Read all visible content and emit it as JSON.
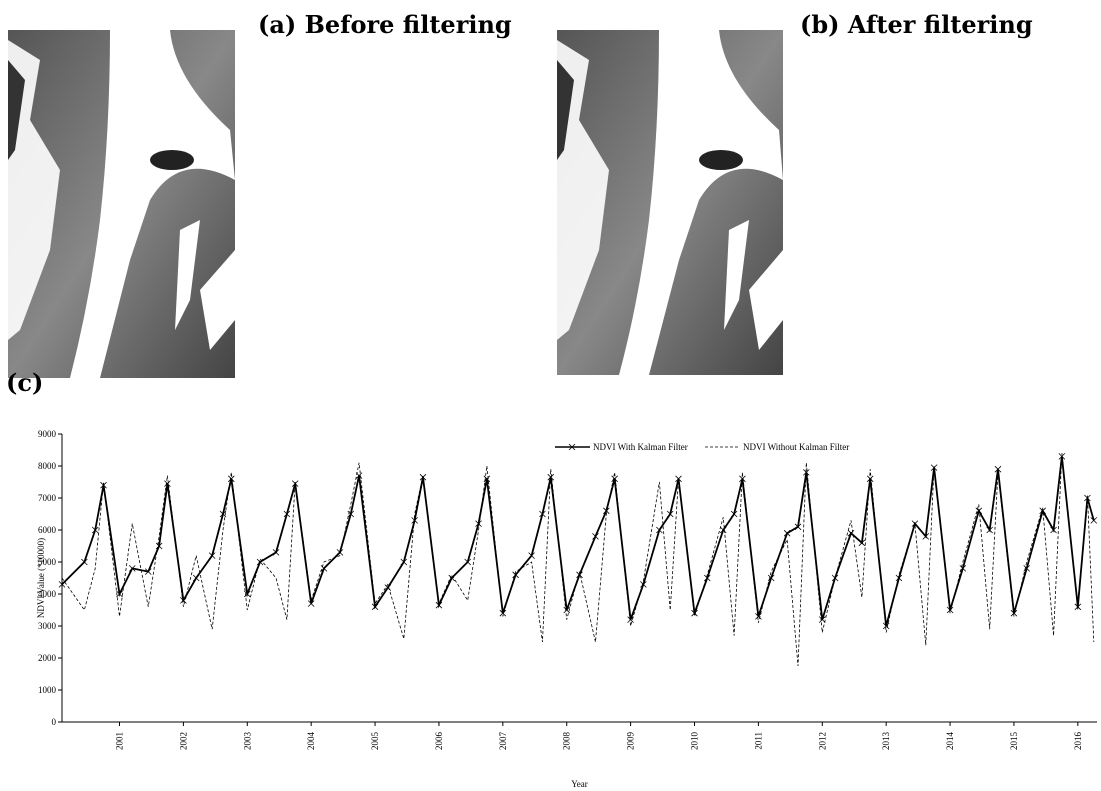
{
  "panels": {
    "a": "(a) Before filtering",
    "b": "(b) After filtering",
    "c": "(c)"
  },
  "chart_data": {
    "type": "line",
    "xlabel": "Year",
    "ylabel": "NDVI Value (*10000)",
    "x": [
      2000.1,
      2000.45,
      2000.62,
      2000.75,
      2001.0,
      2001.2,
      2001.45,
      2001.62,
      2001.75,
      2002.0,
      2002.2,
      2002.45,
      2002.62,
      2002.75,
      2003.0,
      2003.2,
      2003.45,
      2003.62,
      2003.75,
      2004.0,
      2004.2,
      2004.45,
      2004.62,
      2004.75,
      2005.0,
      2005.2,
      2005.45,
      2005.62,
      2005.75,
      2006.0,
      2006.2,
      2006.45,
      2006.62,
      2006.75,
      2007.0,
      2007.2,
      2007.45,
      2007.62,
      2007.75,
      2008.0,
      2008.2,
      2008.45,
      2008.62,
      2008.75,
      2009.0,
      2009.2,
      2009.45,
      2009.62,
      2009.75,
      2010.0,
      2010.2,
      2010.45,
      2010.62,
      2010.75,
      2011.0,
      2011.2,
      2011.45,
      2011.62,
      2011.75,
      2012.0,
      2012.2,
      2012.45,
      2012.62,
      2012.75,
      2013.0,
      2013.2,
      2013.45,
      2013.62,
      2013.75,
      2014.0,
      2014.2,
      2014.45,
      2014.62,
      2014.75,
      2015.0,
      2015.2,
      2015.45,
      2015.62,
      2015.75,
      2016.0,
      2016.15,
      2016.25
    ],
    "series": [
      {
        "name": "NDVI With Kalman Filter",
        "color": "#000000",
        "line_style": "solid",
        "marker": "x",
        "values": [
          4300,
          5000,
          6000,
          7400,
          4000,
          4800,
          4700,
          5500,
          7450,
          3800,
          4500,
          5200,
          6500,
          7600,
          4000,
          5000,
          5300,
          6500,
          7450,
          3700,
          4800,
          5300,
          6500,
          7700,
          3600,
          4200,
          5000,
          6300,
          7650,
          3650,
          4500,
          5000,
          6200,
          7600,
          3400,
          4600,
          5200,
          6500,
          7650,
          3500,
          4600,
          5800,
          6600,
          7600,
          3200,
          4300,
          6000,
          6500,
          7600,
          3400,
          4500,
          6000,
          6500,
          7600,
          3300,
          4500,
          5900,
          6100,
          7800,
          3200,
          4500,
          5900,
          5600,
          7600,
          3000,
          4500,
          6200,
          5800,
          7950,
          3500,
          4800,
          6600,
          6000,
          7900,
          3400,
          4800,
          6600,
          6000,
          8300,
          3600,
          7000,
          6300
        ]
      },
      {
        "name": "NDVI Without Kalman Filter",
        "color": "#000000",
        "line_style": "dashed",
        "marker": "none",
        "values": [
          4500,
          3500,
          4800,
          7500,
          3300,
          6200,
          3600,
          5800,
          7700,
          3600,
          5200,
          2900,
          6000,
          7800,
          3500,
          5100,
          4500,
          3200,
          7500,
          3800,
          5000,
          5200,
          6800,
          8100,
          3700,
          4300,
          2600,
          6500,
          7700,
          3700,
          4600,
          3800,
          6000,
          8000,
          3300,
          4700,
          5000,
          2500,
          7900,
          3200,
          4700,
          2500,
          6500,
          7800,
          3000,
          4400,
          7500,
          3500,
          7600,
          3300,
          4600,
          6400,
          2700,
          7800,
          3100,
          4700,
          5700,
          1750,
          8100,
          2800,
          4500,
          6300,
          3900,
          7900,
          2800,
          4600,
          6200,
          2400,
          8000,
          3400,
          5000,
          6800,
          2900,
          7800,
          3300,
          5000,
          6700,
          2700,
          8400,
          3500,
          7100,
          2500
        ]
      }
    ],
    "xlim": [
      2000.1,
      2016.3
    ],
    "xticks": [
      2001,
      2002,
      2003,
      2004,
      2005,
      2006,
      2007,
      2008,
      2009,
      2010,
      2011,
      2012,
      2013,
      2014,
      2015,
      2016
    ],
    "ylim": [
      0,
      9000
    ],
    "yticks": [
      0,
      1000,
      2000,
      3000,
      4000,
      5000,
      6000,
      7000,
      8000,
      9000
    ],
    "grid": false,
    "legend": "top-center"
  }
}
